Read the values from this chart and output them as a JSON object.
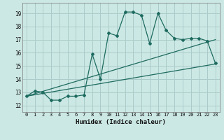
{
  "title": "",
  "xlabel": "Humidex (Indice chaleur)",
  "ylabel": "",
  "bg_color": "#cce8e4",
  "grid_color": "#aaccca",
  "line_color": "#1e6b60",
  "xlim": [
    -0.5,
    23.5
  ],
  "ylim": [
    11.5,
    19.8
  ],
  "xticks": [
    0,
    1,
    2,
    3,
    4,
    5,
    6,
    7,
    8,
    9,
    10,
    11,
    12,
    13,
    14,
    15,
    16,
    17,
    18,
    19,
    20,
    21,
    22,
    23
  ],
  "yticks": [
    12,
    13,
    14,
    15,
    16,
    17,
    18,
    19
  ],
  "main_x": [
    0,
    1,
    2,
    3,
    4,
    5,
    6,
    7,
    8,
    9,
    10,
    11,
    12,
    13,
    14,
    15,
    16,
    17,
    18,
    19,
    20,
    21,
    22,
    23
  ],
  "main_y": [
    12.7,
    13.1,
    13.0,
    12.4,
    12.4,
    12.7,
    12.7,
    12.8,
    15.9,
    14.0,
    17.5,
    17.3,
    19.1,
    19.1,
    18.85,
    16.7,
    19.0,
    17.7,
    17.1,
    17.0,
    17.1,
    17.1,
    16.9,
    15.2
  ],
  "line2_x": [
    0,
    23
  ],
  "line2_y": [
    12.7,
    15.15
  ],
  "line3_x": [
    0,
    23
  ],
  "line3_y": [
    12.7,
    17.0
  ]
}
